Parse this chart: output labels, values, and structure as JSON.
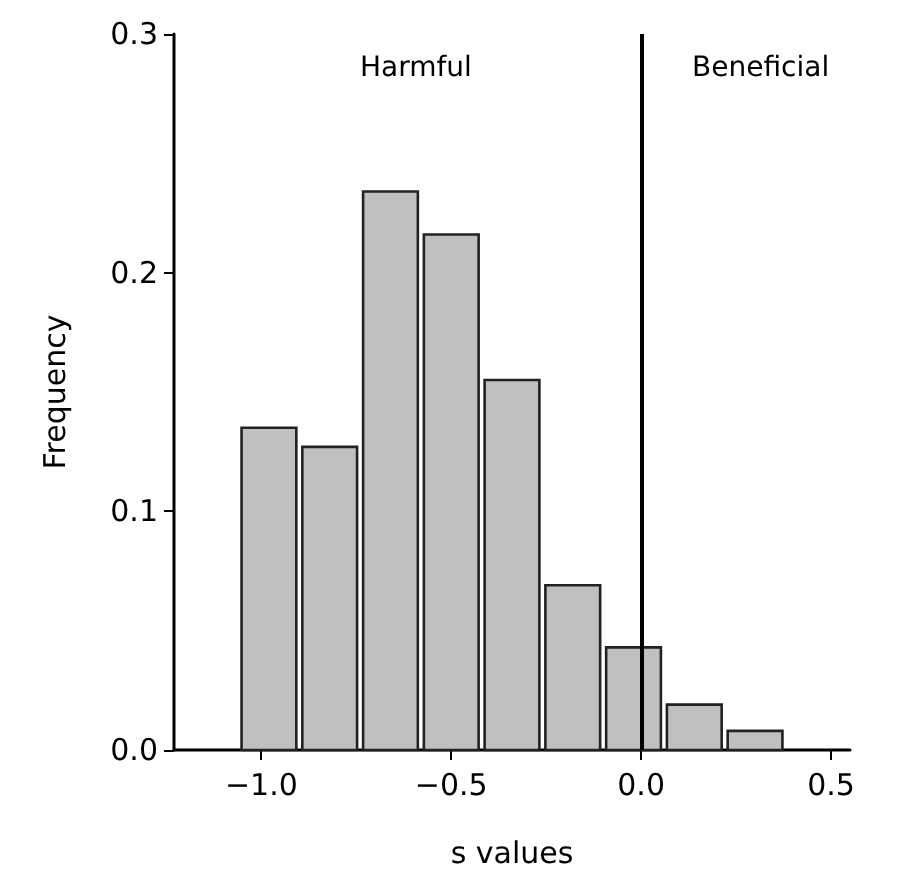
{
  "chart_data": {
    "type": "histogram",
    "xlabel": "s values",
    "ylabel": "Frequency",
    "bins": [
      -1.06,
      -0.9,
      -0.74,
      -0.58,
      -0.42,
      -0.26,
      -0.1,
      0.06,
      0.22,
      0.38
    ],
    "values": [
      0.135,
      0.127,
      0.234,
      0.216,
      0.155,
      0.069,
      0.043,
      0.019,
      0.008
    ],
    "color": "#c0c0c0",
    "xlim": [
      -1.23,
      0.55
    ],
    "xticks": [
      {
        "value": -1,
        "label": "−1.0"
      },
      {
        "value": -0.5,
        "label": "−0.5"
      },
      {
        "value": 0,
        "label": "0.0"
      },
      {
        "value": 0.5,
        "label": "0.5"
      }
    ],
    "ylim": [
      0,
      0.3
    ],
    "yticks": [
      {
        "value": 0,
        "label": "0.0"
      },
      {
        "value": 0.1,
        "label": "0.1"
      },
      {
        "value": 0.2,
        "label": "0.2"
      },
      {
        "value": 0.3,
        "label": "0.3"
      }
    ],
    "ref_lines": [
      {
        "axis": "x",
        "value": 0,
        "color": "#000000"
      }
    ],
    "annotations": [
      "Harmful",
      "Beneficial"
    ]
  }
}
